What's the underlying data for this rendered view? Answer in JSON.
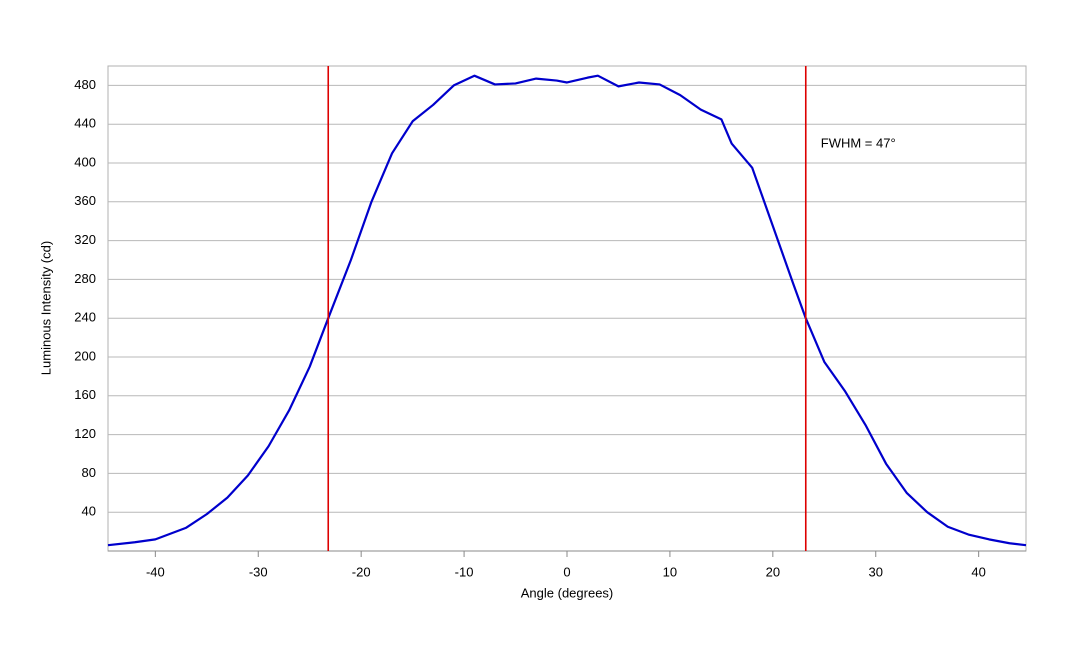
{
  "chart_data": {
    "type": "line",
    "x_label": "Angle (degrees)",
    "y_label": "Luminous Intensity (cd)",
    "annotation": "FWHM = 47°",
    "x": [
      -44.6,
      -42,
      -40,
      -39,
      -37,
      -35,
      -33,
      -31,
      -29,
      -27,
      -25,
      -23.2,
      -21,
      -19,
      -17,
      -15,
      -13,
      -11,
      -9,
      -7,
      -5,
      -3,
      -1,
      0,
      2,
      3,
      5,
      7,
      9,
      11,
      13,
      15,
      16,
      18,
      20,
      22,
      23.2,
      25,
      27,
      29,
      31,
      33,
      35,
      37,
      39,
      41,
      43,
      44.6
    ],
    "series": [
      {
        "name": "Luminous Intensity",
        "color": "#0000cc",
        "values": [
          6,
          9,
          12,
          16,
          24,
          38,
          55,
          78,
          108,
          145,
          190,
          240,
          300,
          360,
          410,
          443,
          460,
          480,
          490,
          481,
          482,
          487,
          485,
          483,
          488,
          490,
          479,
          483,
          481,
          470,
          455,
          445,
          420,
          395,
          335,
          275,
          240,
          195,
          165,
          130,
          90,
          60,
          40,
          25,
          17,
          12,
          8,
          6
        ]
      }
    ],
    "reference_lines": [
      -23.2,
      23.2
    ],
    "reference_color": "#dd0000",
    "xlim": [
      -44.6,
      44.6
    ],
    "ylim": [
      0,
      500
    ],
    "xticks": [
      -40,
      -30,
      -20,
      -10,
      0,
      10,
      20,
      30,
      40
    ],
    "yticks": [
      40,
      80,
      120,
      160,
      200,
      240,
      280,
      320,
      360,
      400,
      440,
      480
    ],
    "grid": true
  }
}
